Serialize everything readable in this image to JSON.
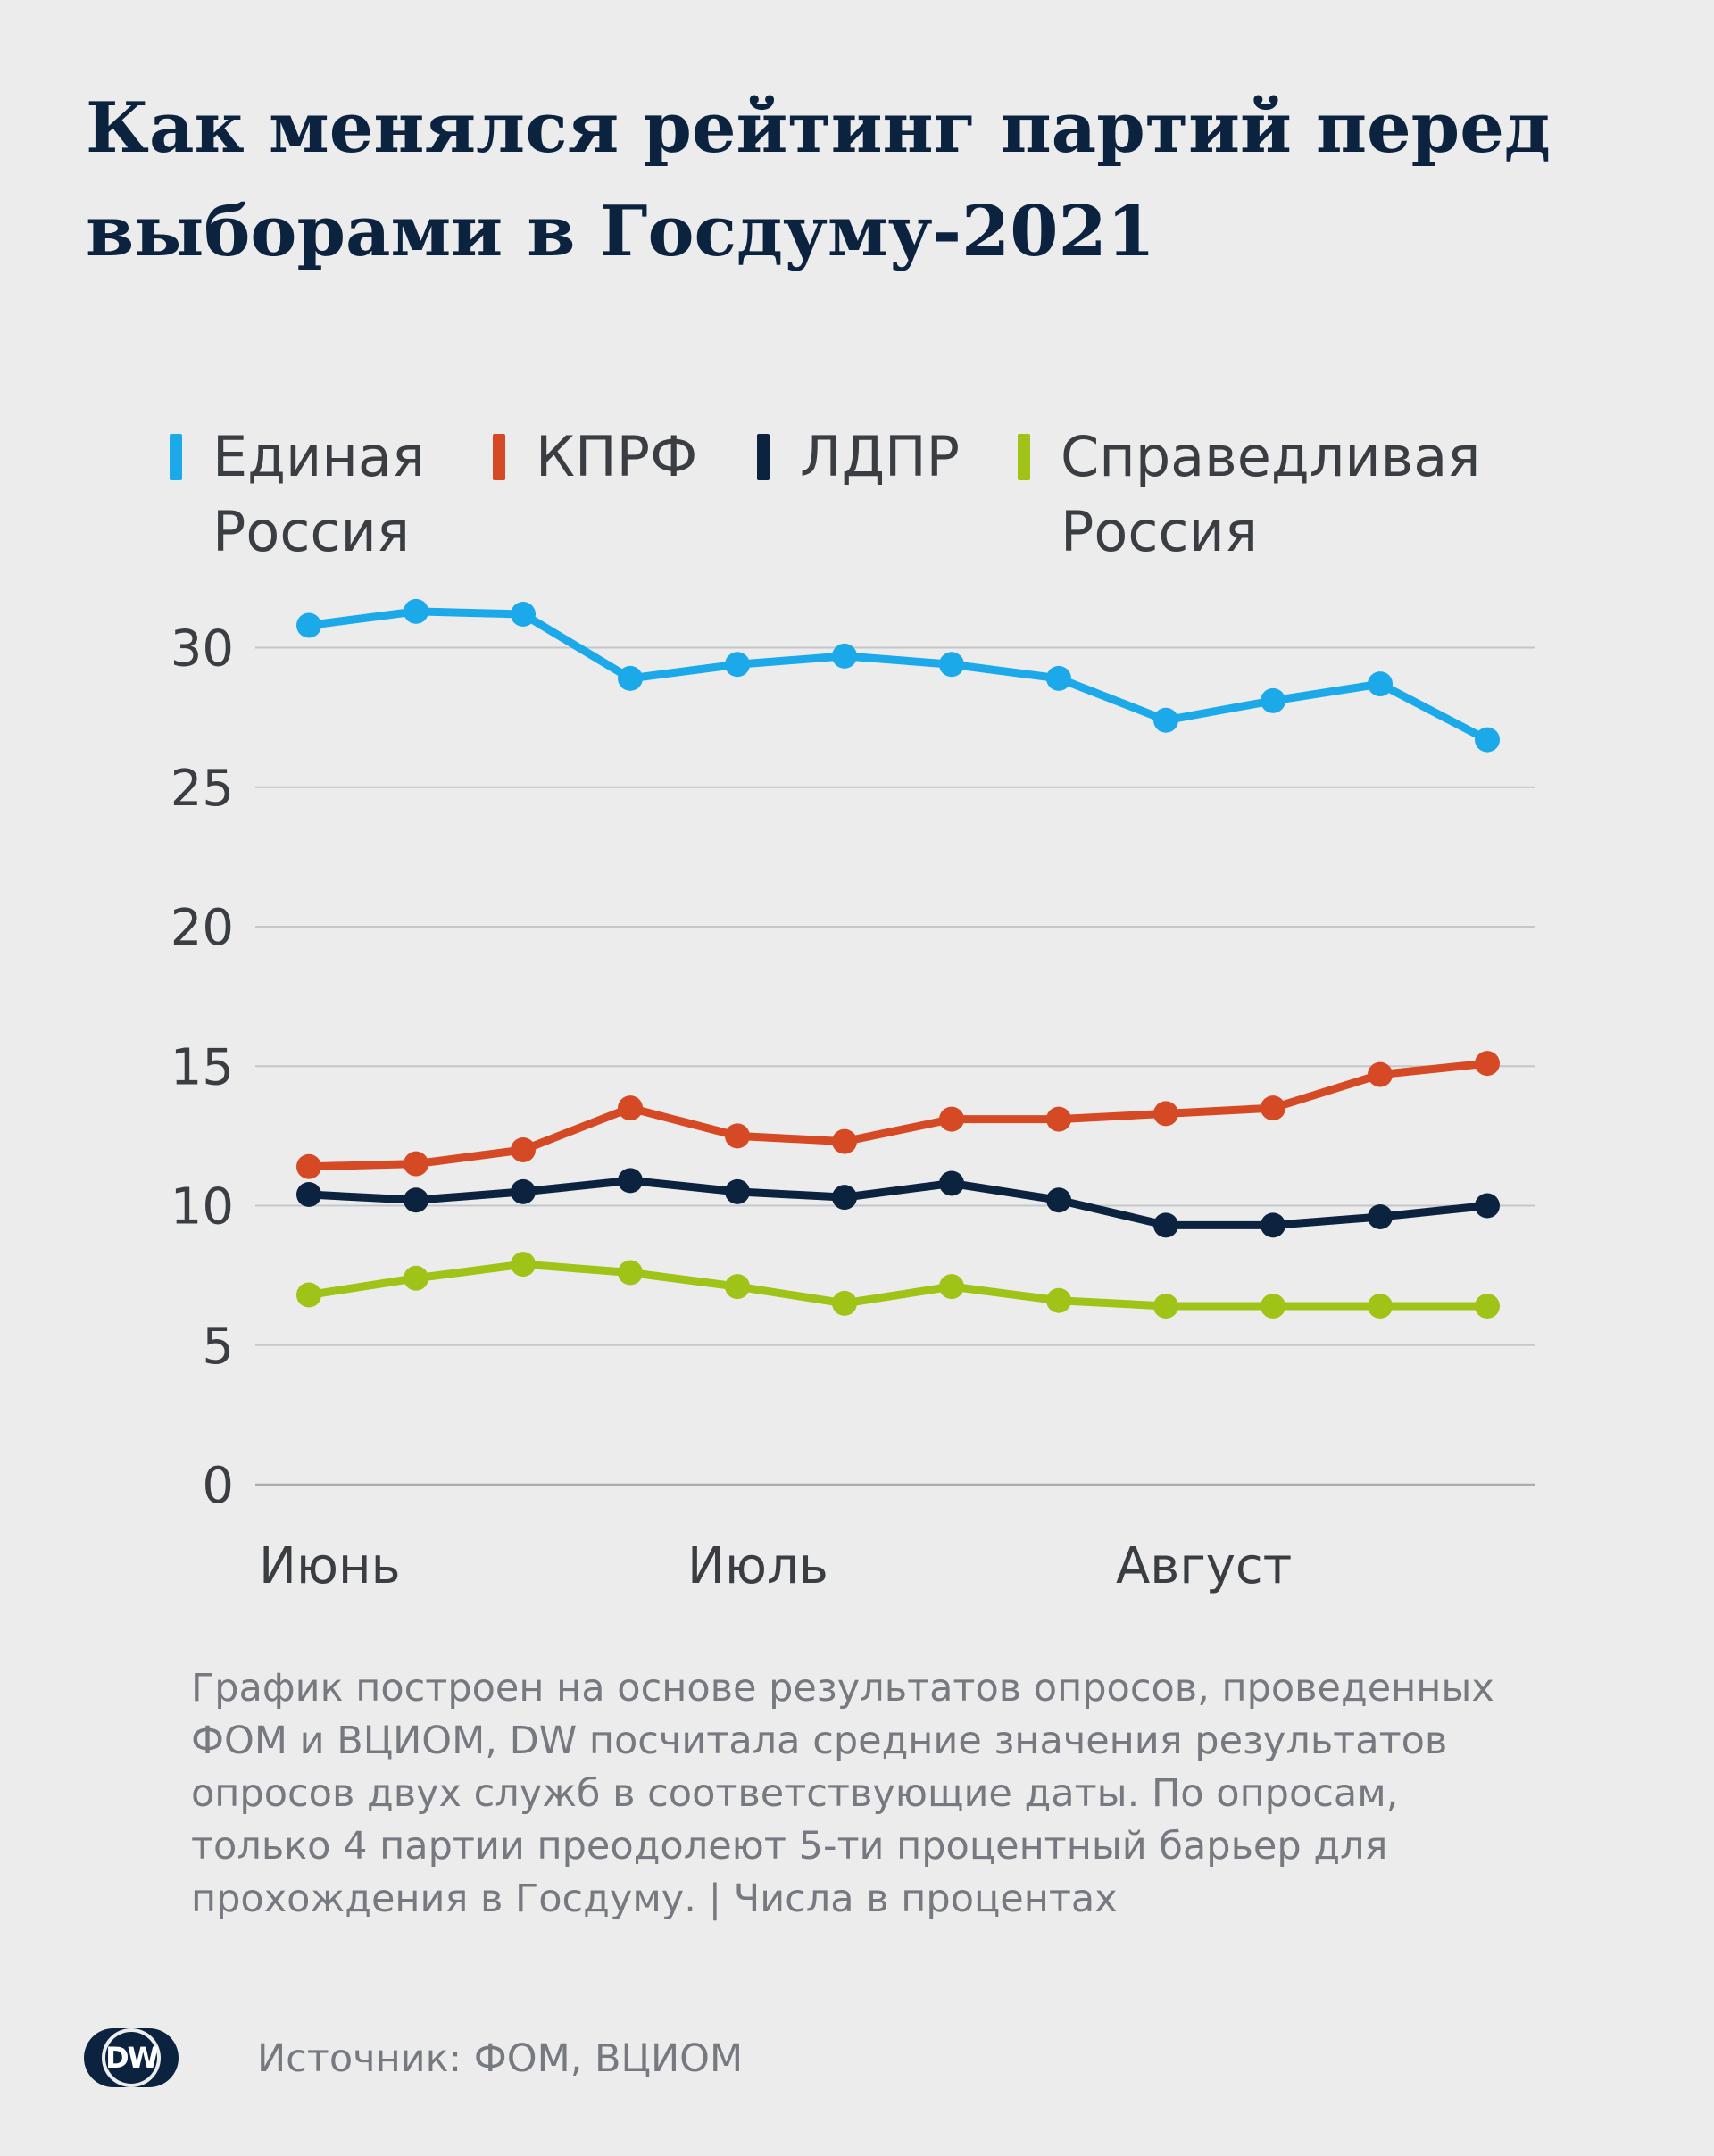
{
  "title": "Как менялся рейтинг партий перед выборами в Госдуму-2021",
  "note": "График построен на основе результатов опросов, проведенных ФОМ и ВЦИОМ, DW посчитала средние значения результатов опросов двух служб в соответствующие даты. По опросам, только 4 партии преодолеют  5-ти процентный барьер для прохождения в Госдуму. | Числа в процентах",
  "source": "Источник: ФОМ, ВЦИОМ",
  "logo": "DW",
  "chart_data": {
    "type": "line",
    "x_tick_labels": [
      "Июнь",
      "Июль",
      "Август"
    ],
    "x_tick_positions": [
      0,
      4,
      8
    ],
    "ylim": [
      0,
      32
    ],
    "yticks": [
      0,
      5,
      10,
      15,
      20,
      25,
      30
    ],
    "grid": true,
    "legend_position": "top",
    "series": [
      {
        "name": "Единая\nРоссия",
        "color": "#1ca9ea",
        "values": [
          30.8,
          31.3,
          31.2,
          28.9,
          29.4,
          29.7,
          29.4,
          28.9,
          27.4,
          28.1,
          28.7,
          26.7
        ]
      },
      {
        "name": "КПРФ",
        "color": "#d54a24",
        "values": [
          11.4,
          11.5,
          12.0,
          13.5,
          12.5,
          12.3,
          13.1,
          13.1,
          13.3,
          13.5,
          14.7,
          15.1
        ]
      },
      {
        "name": "ЛДПР",
        "color": "#0c2340",
        "values": [
          10.4,
          10.2,
          10.5,
          10.9,
          10.5,
          10.3,
          10.8,
          10.2,
          9.3,
          9.3,
          9.6,
          10.0
        ]
      },
      {
        "name": "Справедливая\nРоссия",
        "color": "#9fc317",
        "values": [
          6.8,
          7.4,
          7.9,
          7.6,
          7.1,
          6.5,
          7.1,
          6.6,
          6.4,
          6.4,
          6.4,
          6.4
        ]
      }
    ]
  }
}
